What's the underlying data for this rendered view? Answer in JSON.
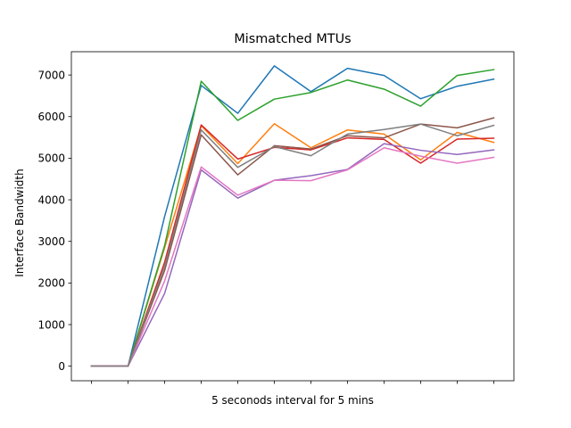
{
  "chart_data": {
    "type": "line",
    "title": "Mismatched MTUs",
    "xlabel": "5 seconods interval for 5 mins",
    "ylabel": "Interface Bandwidth",
    "x": [
      0,
      1,
      2,
      3,
      4,
      5,
      6,
      7,
      8,
      9,
      10,
      11
    ],
    "xtick_labels_shown": false,
    "yticks": [
      0,
      1000,
      2000,
      3000,
      4000,
      5000,
      6000,
      7000
    ],
    "ylim": [
      -350,
      7560
    ],
    "xlim": [
      -0.55,
      11.55
    ],
    "grid": false,
    "series": [
      {
        "color": "#1f77b4",
        "values": [
          0,
          0,
          3600,
          6750,
          6080,
          7220,
          6600,
          7160,
          6990,
          6430,
          6730,
          6900
        ]
      },
      {
        "color": "#ff7f0e",
        "values": [
          0,
          0,
          2850,
          5780,
          4870,
          5830,
          5250,
          5680,
          5580,
          4960,
          5620,
          5380
        ]
      },
      {
        "color": "#2ca02c",
        "values": [
          0,
          0,
          2900,
          6850,
          5910,
          6420,
          6580,
          6880,
          6660,
          6250,
          6990,
          7130
        ]
      },
      {
        "color": "#d62728",
        "values": [
          0,
          0,
          2500,
          5800,
          4980,
          5260,
          5200,
          5490,
          5450,
          4880,
          5460,
          5480
        ]
      },
      {
        "color": "#9467bd",
        "values": [
          0,
          0,
          1750,
          4720,
          4040,
          4470,
          4580,
          4730,
          5350,
          5190,
          5090,
          5200
        ]
      },
      {
        "color": "#8c564b",
        "values": [
          0,
          0,
          2300,
          5560,
          4600,
          5300,
          5220,
          5540,
          5490,
          5820,
          5730,
          5970
        ]
      },
      {
        "color": "#e377c2",
        "values": [
          0,
          0,
          2050,
          4790,
          4110,
          4470,
          4460,
          4720,
          5250,
          5050,
          4880,
          5020
        ]
      },
      {
        "color": "#7f7f7f",
        "values": [
          0,
          0,
          2400,
          5680,
          4780,
          5280,
          5060,
          5580,
          5690,
          5820,
          5540,
          5790
        ]
      }
    ]
  }
}
